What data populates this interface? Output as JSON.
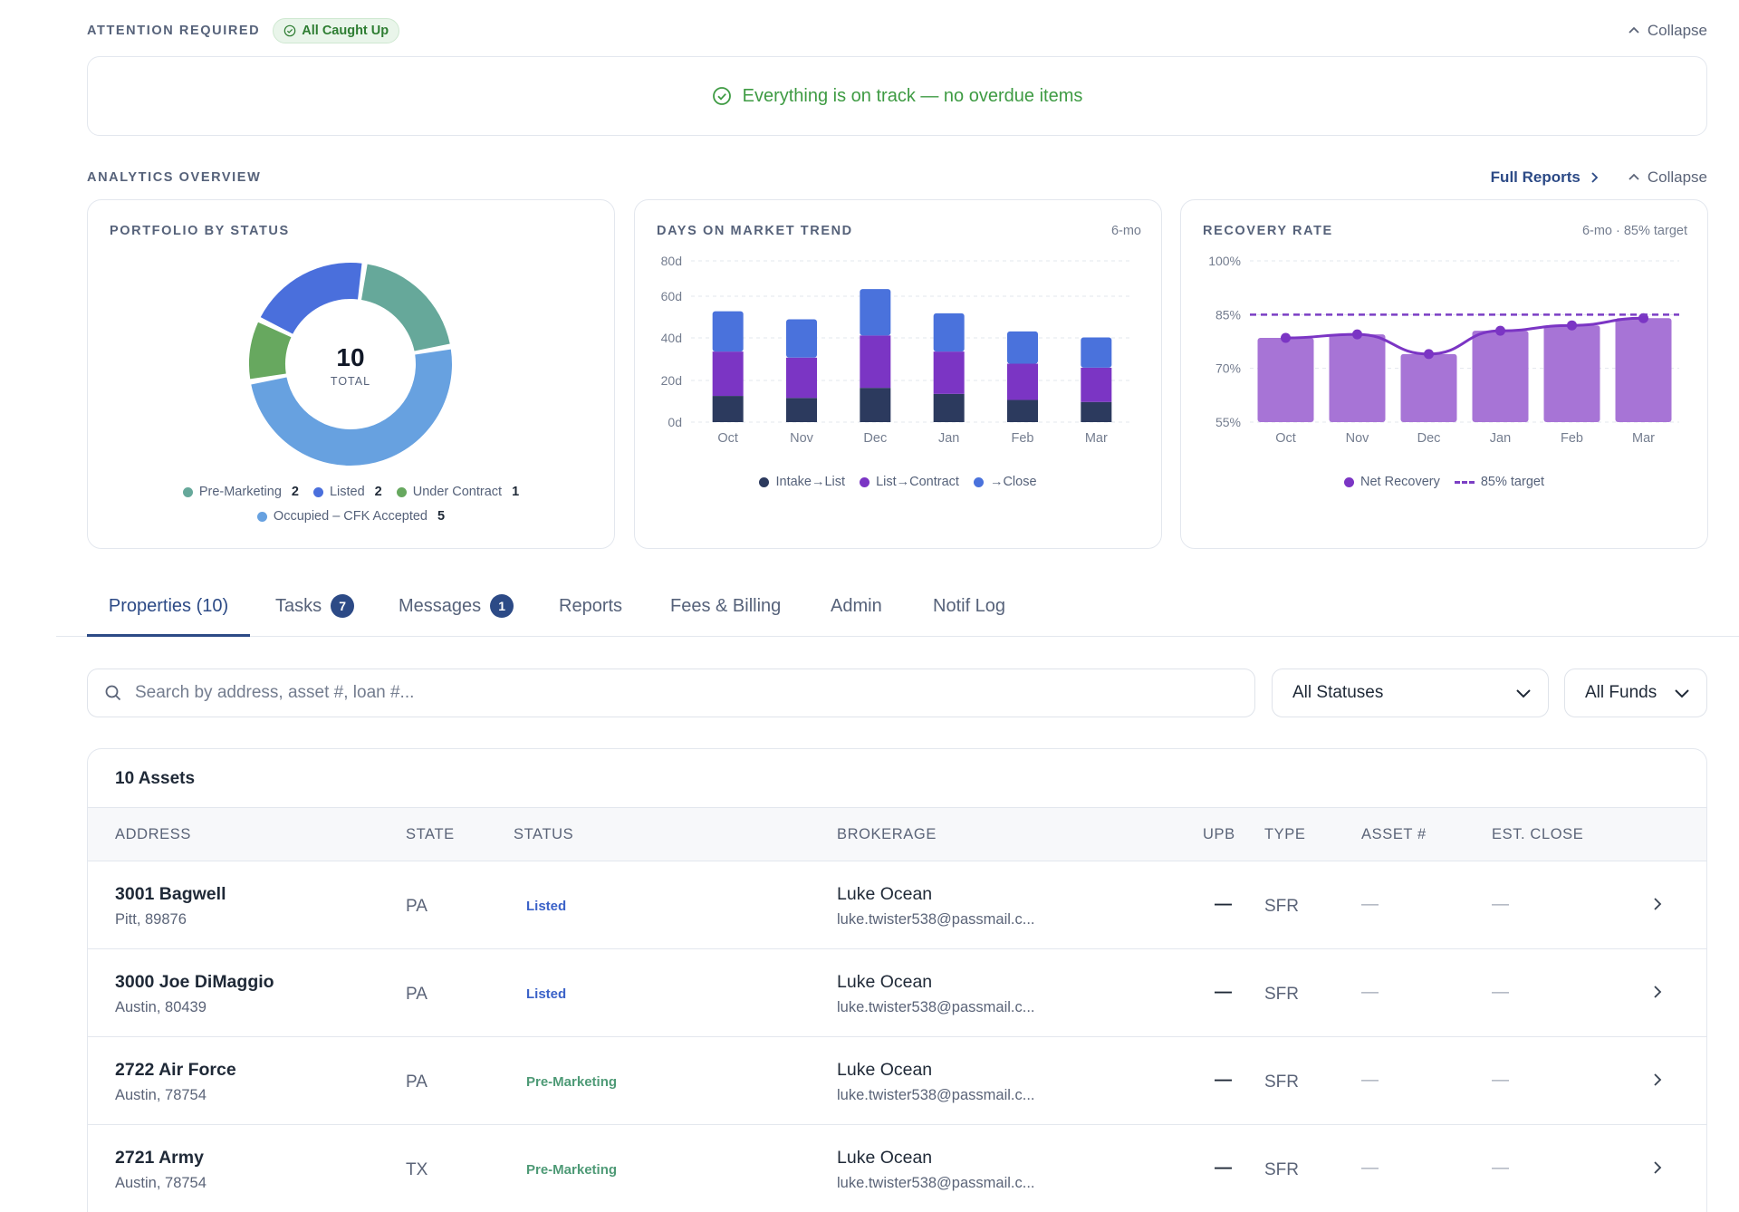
{
  "attention": {
    "title": "ATTENTION REQUIRED",
    "badge": "All Caught Up",
    "collapse": "Collapse",
    "message": "Everything is on track — no overdue items"
  },
  "analytics": {
    "title": "ANALYTICS OVERVIEW",
    "full_reports": "Full Reports",
    "collapse": "Collapse"
  },
  "portfolio": {
    "title": "PORTFOLIO BY STATUS",
    "total": "10",
    "total_label": "TOTAL",
    "legend": [
      {
        "label": "Pre-Marketing",
        "count": "2",
        "color": "#66a89a"
      },
      {
        "label": "Listed",
        "count": "2",
        "color": "#4a6fdc"
      },
      {
        "label": "Under Contract",
        "count": "1",
        "color": "#67a85f"
      },
      {
        "label": "Occupied – CFK Accepted",
        "count": "5",
        "color": "#67a1e0"
      }
    ]
  },
  "dom": {
    "title": "DAYS ON MARKET TREND",
    "meta": "6-mo",
    "legend": [
      {
        "label": "Intake→List",
        "color": "#2c3a5e"
      },
      {
        "label": "List→Contract",
        "color": "#7b35c4"
      },
      {
        "label": "→Close",
        "color": "#4a72dc"
      }
    ]
  },
  "recovery": {
    "title": "RECOVERY RATE",
    "meta": "6-mo · 85% target",
    "legend_series": "Net Recovery",
    "legend_target": "85% target"
  },
  "chart_data": [
    {
      "type": "pie",
      "title": "PORTFOLIO BY STATUS",
      "labels": [
        "Pre-Marketing",
        "Listed",
        "Under Contract",
        "Occupied – CFK Accepted"
      ],
      "values": [
        2,
        2,
        1,
        5
      ],
      "colors": [
        "#66a89a",
        "#4a6fdc",
        "#67a85f",
        "#67a1e0"
      ],
      "center_text": "10"
    },
    {
      "type": "bar",
      "stacked": true,
      "title": "DAYS ON MARKET TREND",
      "categories": [
        "Oct",
        "Nov",
        "Dec",
        "Jan",
        "Feb",
        "Mar"
      ],
      "y_ticks": [
        "0d",
        "20d",
        "40d",
        "60d",
        "80d"
      ],
      "ylim": [
        0,
        80
      ],
      "series": [
        {
          "name": "Intake→List",
          "values": [
            13,
            12,
            17,
            14,
            11,
            10
          ],
          "color": "#2c3a5e"
        },
        {
          "name": "List→Contract",
          "values": [
            22,
            20,
            26,
            21,
            18,
            17
          ],
          "color": "#7b35c4"
        },
        {
          "name": "→Close",
          "values": [
            20,
            19,
            23,
            19,
            16,
            15
          ],
          "color": "#4a72dc"
        }
      ]
    },
    {
      "type": "bar",
      "title": "RECOVERY RATE",
      "categories": [
        "Oct",
        "Nov",
        "Dec",
        "Jan",
        "Feb",
        "Mar"
      ],
      "y_ticks": [
        "55%",
        "70%",
        "85%",
        "100%"
      ],
      "ylim": [
        55,
        100
      ],
      "series": [
        {
          "name": "Net Recovery",
          "values": [
            78.5,
            79.5,
            74,
            80.5,
            82,
            84
          ],
          "color": "#a774d6",
          "line_color": "#7b35c4"
        },
        {
          "name": "85% target",
          "values": [
            85,
            85,
            85,
            85,
            85,
            85
          ],
          "color": "#7b3fc4",
          "dashed": true
        }
      ]
    }
  ],
  "tabs": [
    {
      "label": "Properties (10)",
      "badge": ""
    },
    {
      "label": "Tasks",
      "badge": "7"
    },
    {
      "label": "Messages",
      "badge": "1"
    },
    {
      "label": "Reports",
      "badge": ""
    },
    {
      "label": "Fees & Billing",
      "badge": ""
    },
    {
      "label": "Admin",
      "badge": ""
    },
    {
      "label": "Notif Log",
      "badge": ""
    }
  ],
  "filters": {
    "search_placeholder": "Search by address, asset #, loan #...",
    "status": "All Statuses",
    "fund": "All Funds"
  },
  "table": {
    "count": "10 Assets",
    "headers": [
      "ADDRESS",
      "STATE",
      "STATUS",
      "BROKERAGE",
      "UPB",
      "TYPE",
      "ASSET #",
      "EST. CLOSE"
    ],
    "rows": [
      {
        "address": "3001 Bagwell",
        "city": "Pitt, 89876",
        "state": "PA",
        "status": "Listed",
        "broker": "Luke Ocean",
        "email": "luke.twister538@passmail.c...",
        "upb": "—",
        "type": "SFR",
        "asset": "—",
        "close": "—"
      },
      {
        "address": "3000 Joe DiMaggio",
        "city": "Austin, 80439",
        "state": "PA",
        "status": "Listed",
        "broker": "Luke Ocean",
        "email": "luke.twister538@passmail.c...",
        "upb": "—",
        "type": "SFR",
        "asset": "—",
        "close": "—"
      },
      {
        "address": "2722 Air Force",
        "city": "Austin, 78754",
        "state": "PA",
        "status": "Pre-Marketing",
        "broker": "Luke Ocean",
        "email": "luke.twister538@passmail.c...",
        "upb": "—",
        "type": "SFR",
        "asset": "—",
        "close": "—"
      },
      {
        "address": "2721 Army",
        "city": "Austin, 78754",
        "state": "TX",
        "status": "Pre-Marketing",
        "broker": "Luke Ocean",
        "email": "luke.twister538@passmail.c...",
        "upb": "—",
        "type": "SFR",
        "asset": "—",
        "close": "—"
      }
    ]
  }
}
